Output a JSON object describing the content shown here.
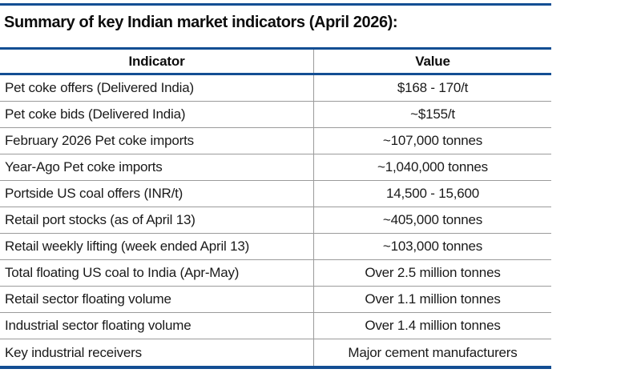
{
  "page": {
    "title": "Summary of key Indian market indicators (April 2026):"
  },
  "colors": {
    "accent_blue": "#134E93",
    "divider_gray": "#9B9B9B",
    "text": "#1A1A1A"
  },
  "table": {
    "headers": {
      "indicator": "Indicator",
      "value": "Value"
    },
    "rows": [
      {
        "indicator": "Pet coke offers (Delivered India)",
        "value": "$168 - 170/t"
      },
      {
        "indicator": "Pet coke bids (Delivered India)",
        "value": "~$155/t"
      },
      {
        "indicator": "February 2026 Pet coke imports",
        "value": "~107,000 tonnes"
      },
      {
        "indicator": "Year-Ago Pet coke imports",
        "value": "~1,040,000 tonnes"
      },
      {
        "indicator": "Portside US coal offers (INR/t)",
        "value": "14,500 - 15,600"
      },
      {
        "indicator": "Retail port stocks (as of April 13)",
        "value": "~405,000 tonnes"
      },
      {
        "indicator": "Retail weekly lifting (week ended April 13)",
        "value": "~103,000 tonnes"
      },
      {
        "indicator": "Total floating US coal to India (Apr-May)",
        "value": "Over 2.5 million tonnes"
      },
      {
        "indicator": "Retail sector floating volume",
        "value": "Over 1.1 million tonnes"
      },
      {
        "indicator": "Industrial sector floating volume",
        "value": "Over 1.4 million tonnes"
      },
      {
        "indicator": "Key industrial receivers",
        "value": "Major cement manufacturers"
      }
    ]
  }
}
